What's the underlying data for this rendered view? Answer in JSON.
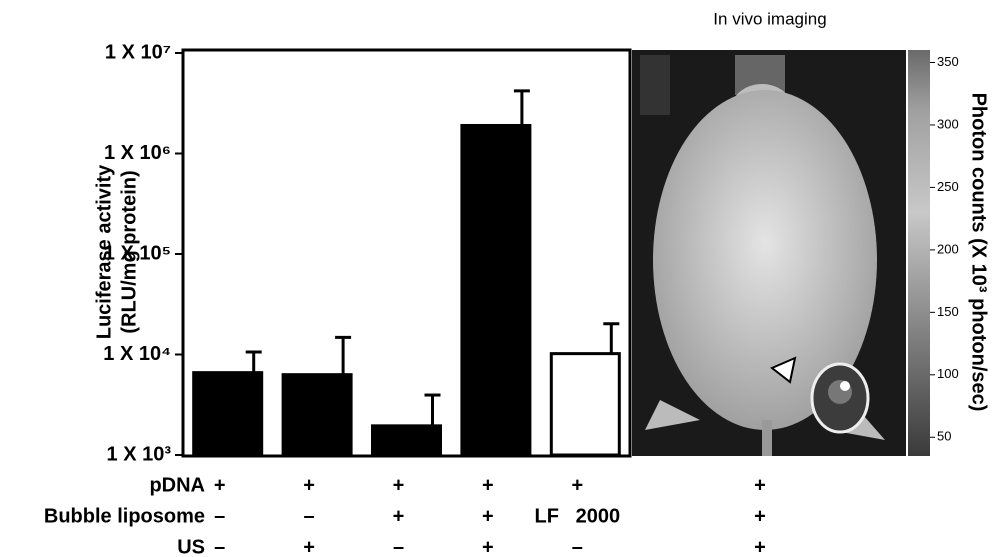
{
  "chart_data": {
    "type": "bar",
    "y_label_lines": [
      "Luciferase activity",
      "(RLU/mg protein)"
    ],
    "log_scale": true,
    "ylim": [
      1000,
      10000000
    ],
    "yticks": [
      {
        "value": 1000,
        "label": "1 X 10³"
      },
      {
        "value": 10000,
        "label": "1 X 10⁴"
      },
      {
        "value": 100000,
        "label": "1 X 10⁵"
      },
      {
        "value": 1000000,
        "label": "1 X 10⁶"
      },
      {
        "value": 10000000,
        "label": "1 X 10⁷"
      }
    ],
    "values": [
      6600,
      6300,
      1950,
      1900000,
      10200
    ],
    "errors": [
      4000,
      8500,
      2000,
      2300000,
      10000
    ],
    "colors": [
      "#000000",
      "#000000",
      "#000000",
      "#000000",
      "#ffffff"
    ],
    "conditions": [
      {
        "label": "pDNA",
        "marks": [
          "+",
          "+",
          "+",
          "+",
          "+",
          "+"
        ]
      },
      {
        "label": "Bubble liposome",
        "marks": [
          "–",
          "–",
          "+",
          "+",
          "LF   2000",
          "+"
        ]
      },
      {
        "label": "US",
        "marks": [
          "–",
          "+",
          "–",
          "+",
          "–",
          "+"
        ]
      }
    ],
    "inset_title": "In vivo imaging",
    "colorbar": {
      "label": "Photon counts (X 10³ photon/sec)",
      "lim": [
        35,
        360
      ],
      "ticks": [
        50,
        100,
        150,
        200,
        250,
        300,
        350
      ]
    }
  }
}
